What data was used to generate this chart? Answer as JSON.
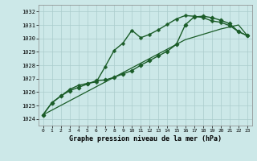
{
  "title": "Graphe pression niveau de la mer (hPa)",
  "background_color": "#cce8e8",
  "grid_color": "#aacccc",
  "line_color": "#1a5c28",
  "xlim": [
    -0.5,
    23.5
  ],
  "ylim": [
    1023.5,
    1032.5
  ],
  "yticks": [
    1024,
    1025,
    1026,
    1027,
    1028,
    1029,
    1030,
    1031,
    1032
  ],
  "xticks": [
    0,
    1,
    2,
    3,
    4,
    5,
    6,
    7,
    8,
    9,
    10,
    11,
    12,
    13,
    14,
    15,
    16,
    17,
    18,
    19,
    20,
    21,
    22,
    23
  ],
  "series": [
    {
      "x": [
        0,
        1,
        2,
        3,
        4,
        5,
        6,
        7,
        8,
        9,
        10,
        11,
        12,
        13,
        14,
        15,
        16,
        17,
        18,
        19,
        20,
        21,
        22,
        23
      ],
      "y": [
        1024.3,
        1024.65,
        1025.0,
        1025.35,
        1025.7,
        1026.05,
        1026.4,
        1026.75,
        1027.1,
        1027.45,
        1027.8,
        1028.15,
        1028.5,
        1028.85,
        1029.2,
        1029.55,
        1029.9,
        1030.1,
        1030.3,
        1030.5,
        1030.7,
        1030.85,
        1031.0,
        1030.2
      ],
      "marker": null,
      "linewidth": 0.9
    },
    {
      "x": [
        0,
        1,
        2,
        3,
        4,
        5,
        6,
        7,
        8,
        9,
        10,
        11,
        12,
        13,
        14,
        15,
        16,
        17,
        18,
        19,
        20,
        21,
        22,
        23
      ],
      "y": [
        1024.3,
        1025.2,
        1025.7,
        1026.1,
        1026.35,
        1026.6,
        1026.85,
        1026.9,
        1027.1,
        1027.35,
        1027.6,
        1028.0,
        1028.35,
        1028.7,
        1029.05,
        1029.55,
        1031.0,
        1031.6,
        1031.65,
        1031.55,
        1031.35,
        1031.1,
        1030.5,
        1030.2
      ],
      "marker": "D",
      "linewidth": 1.0
    },
    {
      "x": [
        0,
        1,
        2,
        3,
        4,
        5,
        6,
        7,
        8,
        9,
        10,
        11,
        12,
        13,
        14,
        15,
        16,
        17,
        18,
        19,
        20,
        21,
        22,
        23
      ],
      "y": [
        1024.3,
        1025.2,
        1025.7,
        1026.2,
        1026.5,
        1026.65,
        1026.75,
        1027.9,
        1029.1,
        1029.65,
        1030.6,
        1030.05,
        1030.3,
        1030.65,
        1031.05,
        1031.45,
        1031.7,
        1031.65,
        1031.55,
        1031.3,
        1031.2,
        1030.95,
        1030.5,
        1030.2
      ],
      "marker": "P",
      "linewidth": 1.0
    }
  ]
}
